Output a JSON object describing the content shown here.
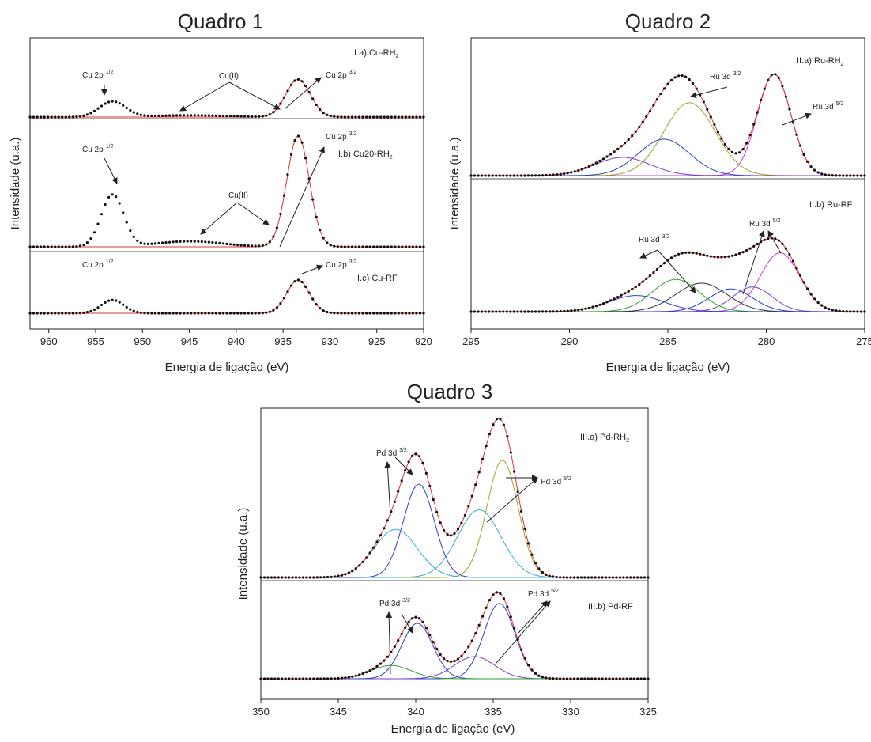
{
  "colors": {
    "envelope": "#e03030",
    "c_blue": "#2b3fc4",
    "c_olive": "#9aa820",
    "c_magenta": "#c040c8",
    "c_green": "#2ea12e",
    "c_dark": "#333333",
    "c_cyan": "#3aa8d8",
    "c_purple": "#7b3fc4",
    "points": "#111111"
  },
  "chart_data": [
    {
      "type": "line",
      "title": "Quadro 1",
      "xlabel": "Energia de ligação (eV)",
      "ylabel": "Intensidade (u.a.)",
      "xlim": [
        962,
        920
      ],
      "xticks": [
        960,
        955,
        950,
        945,
        940,
        935,
        930,
        925,
        920
      ],
      "x_reversed": true,
      "panels": [
        {
          "id": "I.a",
          "label_main": "I.a) Cu-RH",
          "label_sub": "2",
          "peak_center": 933.4,
          "peak_width": 1.3,
          "peak_height": 0.85,
          "satellites": [
            {
              "center": 953.2,
              "width": 1.4,
              "height": 0.35
            },
            {
              "center": 945.0,
              "width": 4.0,
              "height": 0.04
            }
          ],
          "annotations": [
            {
              "label": "Cu 2p",
              "sup": "1/2"
            },
            {
              "label": "Cu(II)",
              "sup": ""
            },
            {
              "label": "Cu 2p",
              "sup": "3/2"
            }
          ]
        },
        {
          "id": "I.b",
          "label_main": "I.b) Cu20-RH",
          "label_sub": "2",
          "peak_center": 933.4,
          "peak_width": 1.2,
          "peak_height": 1.0,
          "satellites": [
            {
              "center": 953.2,
              "width": 1.2,
              "height": 0.47
            },
            {
              "center": 945.0,
              "width": 3.5,
              "height": 0.05
            }
          ],
          "annotations": [
            {
              "label": "Cu 2p",
              "sup": "1/2"
            },
            {
              "label": "Cu(II)",
              "sup": ""
            },
            {
              "label": "Cu 2p",
              "sup": "3/2"
            }
          ]
        },
        {
          "id": "I.c",
          "label_main": "I.c) Cu-RF",
          "label_sub": "",
          "peak_center": 933.4,
          "peak_width": 1.2,
          "peak_height": 0.75,
          "satellites": [
            {
              "center": 953.2,
              "width": 1.2,
              "height": 0.3
            }
          ],
          "annotations": [
            {
              "label": "Cu 2p",
              "sup": "1/2"
            },
            {
              "label": "Cu 2p",
              "sup": "3/2"
            }
          ]
        }
      ]
    },
    {
      "type": "line",
      "title": "Quadro 2",
      "xlabel": "Energia de ligação (eV)",
      "ylabel": "Intensidade (u.a.)",
      "xlim": [
        295,
        275
      ],
      "xticks": [
        295,
        290,
        285,
        280,
        275
      ],
      "x_reversed": true,
      "panels": [
        {
          "id": "II.a",
          "label_main": "II.a) Ru-RH",
          "label_sub": "2",
          "components": [
            {
              "center": 279.6,
              "width": 0.85,
              "height": 1.0,
              "color": "c_magenta"
            },
            {
              "center": 283.9,
              "width": 1.3,
              "height": 0.72,
              "color": "c_olive"
            },
            {
              "center": 285.2,
              "width": 1.3,
              "height": 0.36,
              "color": "c_blue"
            },
            {
              "center": 287.3,
              "width": 1.4,
              "height": 0.18,
              "color": "c_purple"
            }
          ],
          "annotations": [
            {
              "label": "Ru 3d",
              "sup": "3/2"
            },
            {
              "label": "Ru 3d",
              "sup": "5/2"
            }
          ]
        },
        {
          "id": "II.b",
          "label_main": "II.b) Ru-RF",
          "label_sub": "",
          "components": [
            {
              "center": 279.3,
              "width": 1.0,
              "height": 0.62,
              "color": "c_magenta"
            },
            {
              "center": 280.7,
              "width": 1.0,
              "height": 0.26,
              "color": "c_purple"
            },
            {
              "center": 281.8,
              "width": 1.1,
              "height": 0.24,
              "color": "c_blue"
            },
            {
              "center": 283.3,
              "width": 1.3,
              "height": 0.3,
              "color": "c_dark"
            },
            {
              "center": 284.6,
              "width": 1.2,
              "height": 0.34,
              "color": "c_green"
            },
            {
              "center": 286.6,
              "width": 1.4,
              "height": 0.17,
              "color": "c_blue"
            }
          ],
          "annotations": [
            {
              "label": "Ru 3d",
              "sup": "3/2"
            },
            {
              "label": "Ru 3d",
              "sup": "5/2"
            }
          ]
        }
      ]
    },
    {
      "type": "line",
      "title": "Quadro 3",
      "xlabel": "Energia de ligação (eV)",
      "ylabel": "Intensidade (u.a.)",
      "xlim": [
        350,
        325
      ],
      "xticks": [
        350,
        345,
        340,
        335,
        330,
        325
      ],
      "x_reversed": true,
      "panels": [
        {
          "id": "III.a",
          "label_main": "III.a) Pd-RH",
          "label_sub": "2",
          "components": [
            {
              "center": 334.4,
              "width": 1.0,
              "height": 0.78,
              "color": "c_olive"
            },
            {
              "center": 335.9,
              "width": 1.4,
              "height": 0.45,
              "color": "c_cyan"
            },
            {
              "center": 339.8,
              "width": 1.0,
              "height": 0.62,
              "color": "c_blue"
            },
            {
              "center": 341.3,
              "width": 1.4,
              "height": 0.32,
              "color": "c_cyan"
            }
          ],
          "annotations": [
            {
              "label": "Pd 3d",
              "sup": "3/2"
            },
            {
              "label": "Pd 3d",
              "sup": "5/2"
            }
          ]
        },
        {
          "id": "III.b",
          "label_main": "III.b) Pd-RF",
          "label_sub": "",
          "components": [
            {
              "center": 334.6,
              "width": 1.0,
              "height": 0.68,
              "color": "c_blue"
            },
            {
              "center": 336.2,
              "width": 1.3,
              "height": 0.2,
              "color": "c_purple"
            },
            {
              "center": 339.9,
              "width": 1.0,
              "height": 0.5,
              "color": "c_blue"
            },
            {
              "center": 341.6,
              "width": 1.3,
              "height": 0.12,
              "color": "c_green"
            }
          ],
          "annotations": [
            {
              "label": "Pd 3d",
              "sup": "3/2"
            },
            {
              "label": "Pd 3d",
              "sup": "5/2"
            }
          ]
        }
      ]
    }
  ]
}
